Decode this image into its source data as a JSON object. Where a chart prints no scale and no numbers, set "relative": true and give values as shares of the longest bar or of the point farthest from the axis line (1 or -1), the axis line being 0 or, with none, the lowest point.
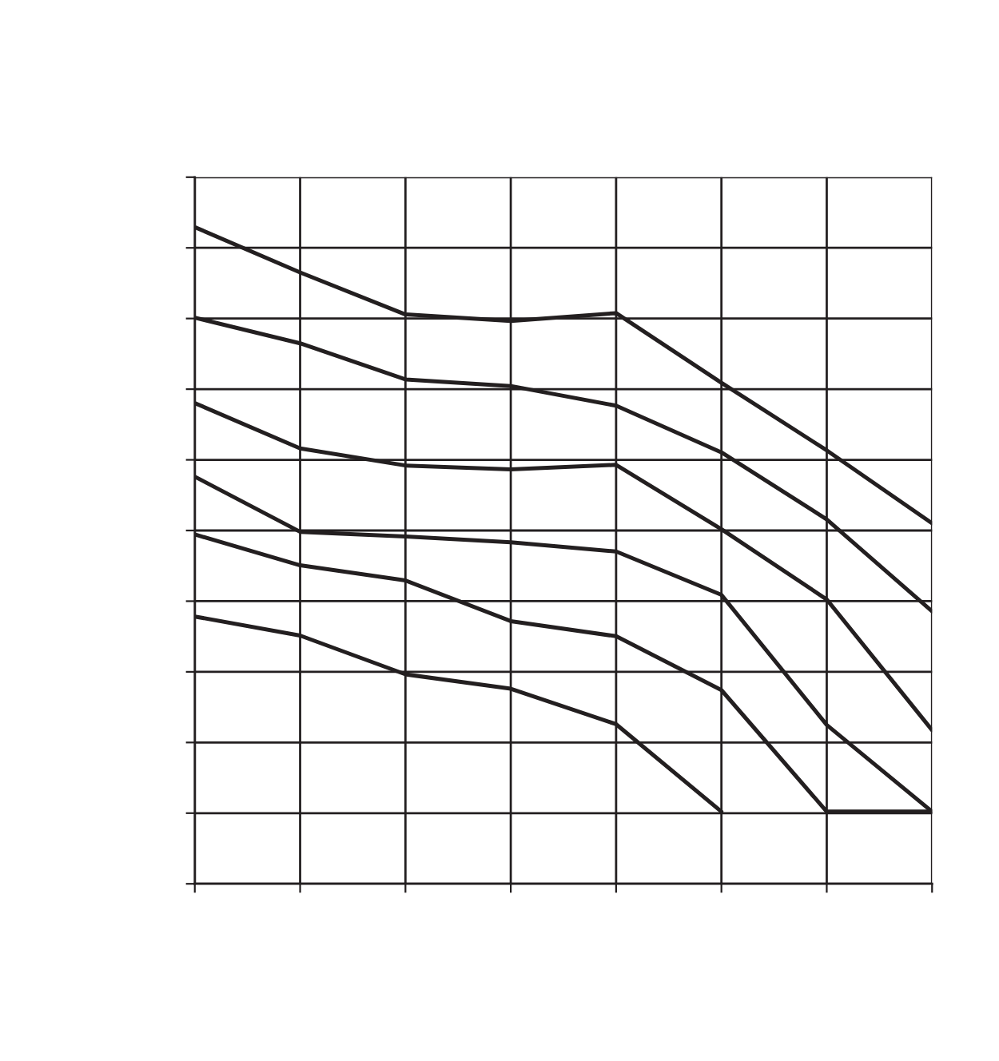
{
  "chart_data": {
    "type": "line",
    "relative": true,
    "grid": true,
    "legend": false,
    "marker": "none",
    "line_style": "solid",
    "categories": [
      null,
      null,
      null,
      null,
      null,
      null,
      null,
      null
    ],
    "series": [
      {
        "color": "#231f20",
        "values": [
          1,
          0.931,
          0.867,
          0.857,
          0.869,
          0.763,
          0.66,
          0.549
        ]
      },
      {
        "color": "#231f20",
        "values": [
          0.862,
          0.823,
          0.768,
          0.758,
          0.728,
          0.657,
          0.555,
          0.415
        ]
      },
      {
        "color": "#231f20",
        "values": [
          0.732,
          0.663,
          0.637,
          0.631,
          0.638,
          0.54,
          0.433,
          0.234
        ]
      },
      {
        "color": "#231f20",
        "values": [
          0.62,
          0.536,
          0.529,
          0.52,
          0.506,
          0.44,
          0.242,
          0.11
        ]
      },
      {
        "color": "#231f20",
        "values": [
          0.532,
          0.485,
          0.462,
          0.4,
          0.377,
          0.295,
          0.11,
          0.11
        ]
      },
      {
        "color": "#231f20",
        "values": [
          0.407,
          0.378,
          0.319,
          0.297,
          0.243,
          0.11,
          null,
          null
        ]
      }
    ]
  }
}
